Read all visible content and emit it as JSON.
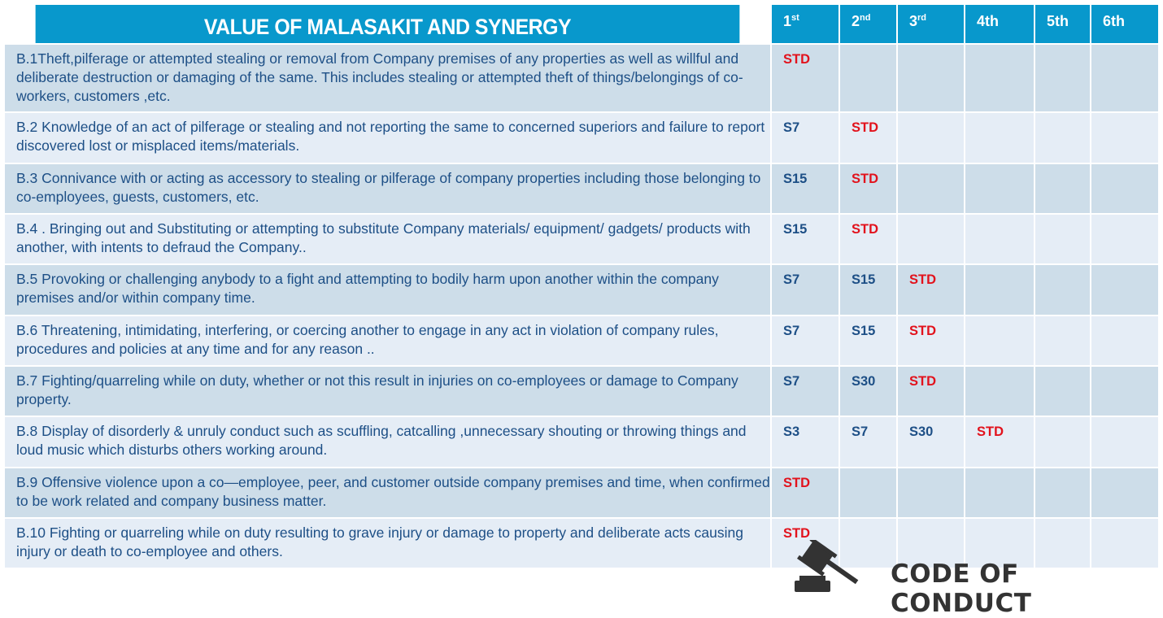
{
  "header": {
    "title": "VALUE OF MALASAKIT AND SYNERGY",
    "columns": [
      {
        "num": "1",
        "sup": "st"
      },
      {
        "num": "2",
        "sup": "nd"
      },
      {
        "num": "3",
        "sup": "rd"
      },
      {
        "num": "4th",
        "sup": ""
      },
      {
        "num": "5th",
        "sup": ""
      },
      {
        "num": "6th",
        "sup": ""
      }
    ]
  },
  "rows": [
    {
      "text": "B.1Theft,pilferage  or attempted stealing or removal from Company premises of any properties as well as willful and deliberate destruction or damaging of the same. This includes stealing or attempted theft of things/belongings of co-workers, customers ,etc.",
      "offenses": [
        "STD",
        "",
        "",
        "",
        "",
        ""
      ]
    },
    {
      "text": "B.2 Knowledge of an act of pilferage or stealing and not reporting the same to concerned superiors and failure to report discovered lost or misplaced items/materials.",
      "offenses": [
        "S7",
        "STD",
        "",
        "",
        "",
        ""
      ]
    },
    {
      "text": "B.3 Connivance with or acting as accessory to stealing or pilferage of company properties including those belonging to co-employees, guests, customers, etc.",
      "offenses": [
        "S15",
        "STD",
        "",
        "",
        "",
        ""
      ]
    },
    {
      "text": "B.4 . Bringing out  and Substituting or attempting to substitute Company materials/ equipment/ gadgets/ products  with another, with intents to defraud the Company..",
      "offenses": [
        "S15",
        "STD",
        "",
        "",
        "",
        ""
      ]
    },
    {
      "text": "B.5 Provoking or challenging anybody to a fight  and attempting to bodily harm upon another within the company premises and/or within company time.",
      "offenses": [
        "S7",
        "S15",
        "STD",
        "",
        "",
        ""
      ]
    },
    {
      "text": "B.6  Threatening, intimidating, interfering, or coercing another to engage in any act in violation of company rules, procedures and policies at any time and for any reason ..",
      "offenses": [
        "S7",
        "S15",
        "STD",
        "",
        "",
        ""
      ]
    },
    {
      "text": "B.7 Fighting/quarreling while on duty, whether or not this result in injuries on co-employees or damage to Company property.",
      "offenses": [
        "S7",
        "S30",
        "STD",
        "",
        "",
        ""
      ]
    },
    {
      "text": "B.8 Display of disorderly & unruly conduct such as scuffling, catcalling ,unnecessary shouting  or throwing things and loud music which disturbs others working around.",
      "offenses": [
        "S3",
        "S7",
        "S30",
        "STD",
        "",
        ""
      ]
    },
    {
      "text": "B.9 Offensive  violence upon a co—employee, peer, and customer  outside company premises  and time, when confirmed to be work related and company business matter.",
      "offenses": [
        "STD",
        "",
        "",
        "",
        "",
        ""
      ]
    },
    {
      "text": "B.10 Fighting or quarreling while on duty  resulting to grave injury or damage to property and deliberate acts causing injury or death to co-employee and others.",
      "offenses": [
        "STD",
        "",
        "",
        "",
        "",
        ""
      ]
    }
  ],
  "logo": {
    "text": "CODE OF CONDUCT",
    "icon": "gavel-icon"
  },
  "colors": {
    "header": "#0898cc",
    "std": "#e2121c",
    "suspension": "#1d4f86"
  }
}
